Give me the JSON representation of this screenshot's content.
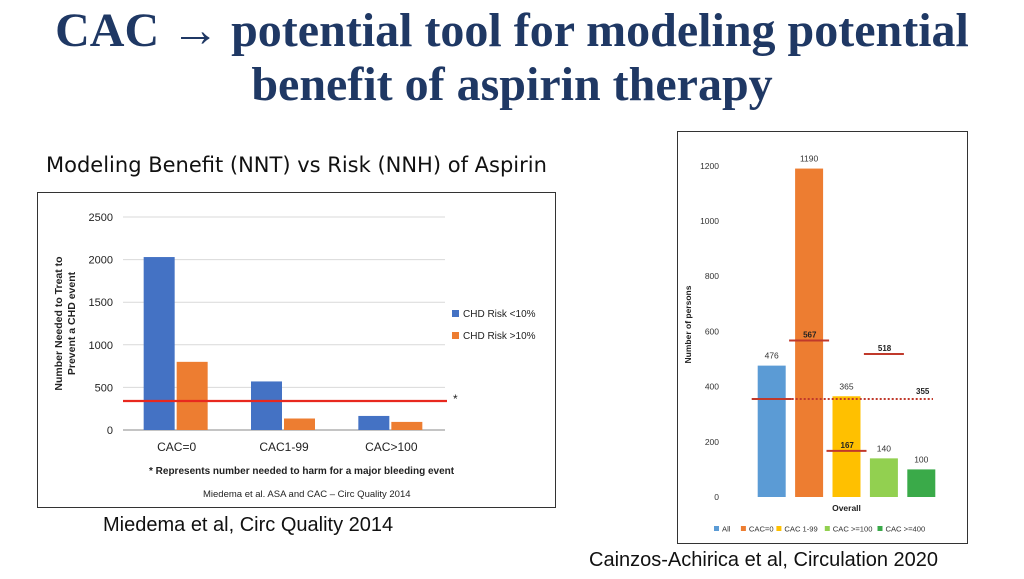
{
  "slide": {
    "title_line1": "CAC → potential tool for modeling potential",
    "title_line2": "benefit of  aspirin therapy",
    "left_subtitle": "Modeling Benefit (NNT) vs Risk (NNH) of Aspirin",
    "left_citation": "Miedema et al, Circ Quality 2014",
    "right_citation": "Cainzos-Achirica et al, Circulation 2020",
    "title_color": "#1f3864"
  },
  "chart_data": [
    {
      "type": "bar",
      "title": "",
      "categories": [
        "CAC=0",
        "CAC1-99",
        "CAC>100"
      ],
      "series": [
        {
          "name": "CHD Risk <10%",
          "color": "#4472c4",
          "values": [
            2030,
            570,
            165
          ]
        },
        {
          "name": "CHD Risk >10%",
          "color": "#ed7d31",
          "values": [
            800,
            135,
            95
          ]
        }
      ],
      "ylabel": "Number Needed to Treat to Prevent a CHD event",
      "ylim": [
        0,
        2500
      ],
      "yticks": [
        0,
        500,
        1000,
        1500,
        2000,
        2500
      ],
      "reference_line": {
        "value": 340,
        "color": "#e8281e",
        "marker": "*"
      },
      "footnote": "* Represents number needed to harm for a major bleeding event",
      "source": "Miedema et al. ASA and CAC – Circ Quality 2014",
      "legend": "right"
    },
    {
      "type": "bar",
      "title": "",
      "categories": [
        "All",
        "CAC=0",
        "CAC 1-99",
        "CAC >=100",
        "CAC >=400"
      ],
      "values": [
        476,
        1190,
        365,
        140,
        100
      ],
      "colors": [
        "#5b9bd5",
        "#ed7d31",
        "#ffc000",
        "#92d050",
        "#3aaa49"
      ],
      "value_labels": [
        "476",
        "1190",
        "365",
        "140",
        "100"
      ],
      "xlabel": "Overall",
      "ylabel": "Number of persons",
      "ylim": [
        0,
        1250
      ],
      "yticks": [
        0,
        200,
        400,
        600,
        800,
        1000,
        1200
      ],
      "nnh_markers": [
        {
          "label": "567",
          "value": 567,
          "category": "CAC=0"
        },
        {
          "label": "518",
          "value": 518,
          "category": "CAC >=100"
        },
        {
          "label": "167",
          "value": 167,
          "category": "CAC 1-99"
        }
      ],
      "all_nnh_line": {
        "value": 355,
        "label": "355",
        "color": "#c0392b"
      },
      "legend": "bottom"
    }
  ]
}
